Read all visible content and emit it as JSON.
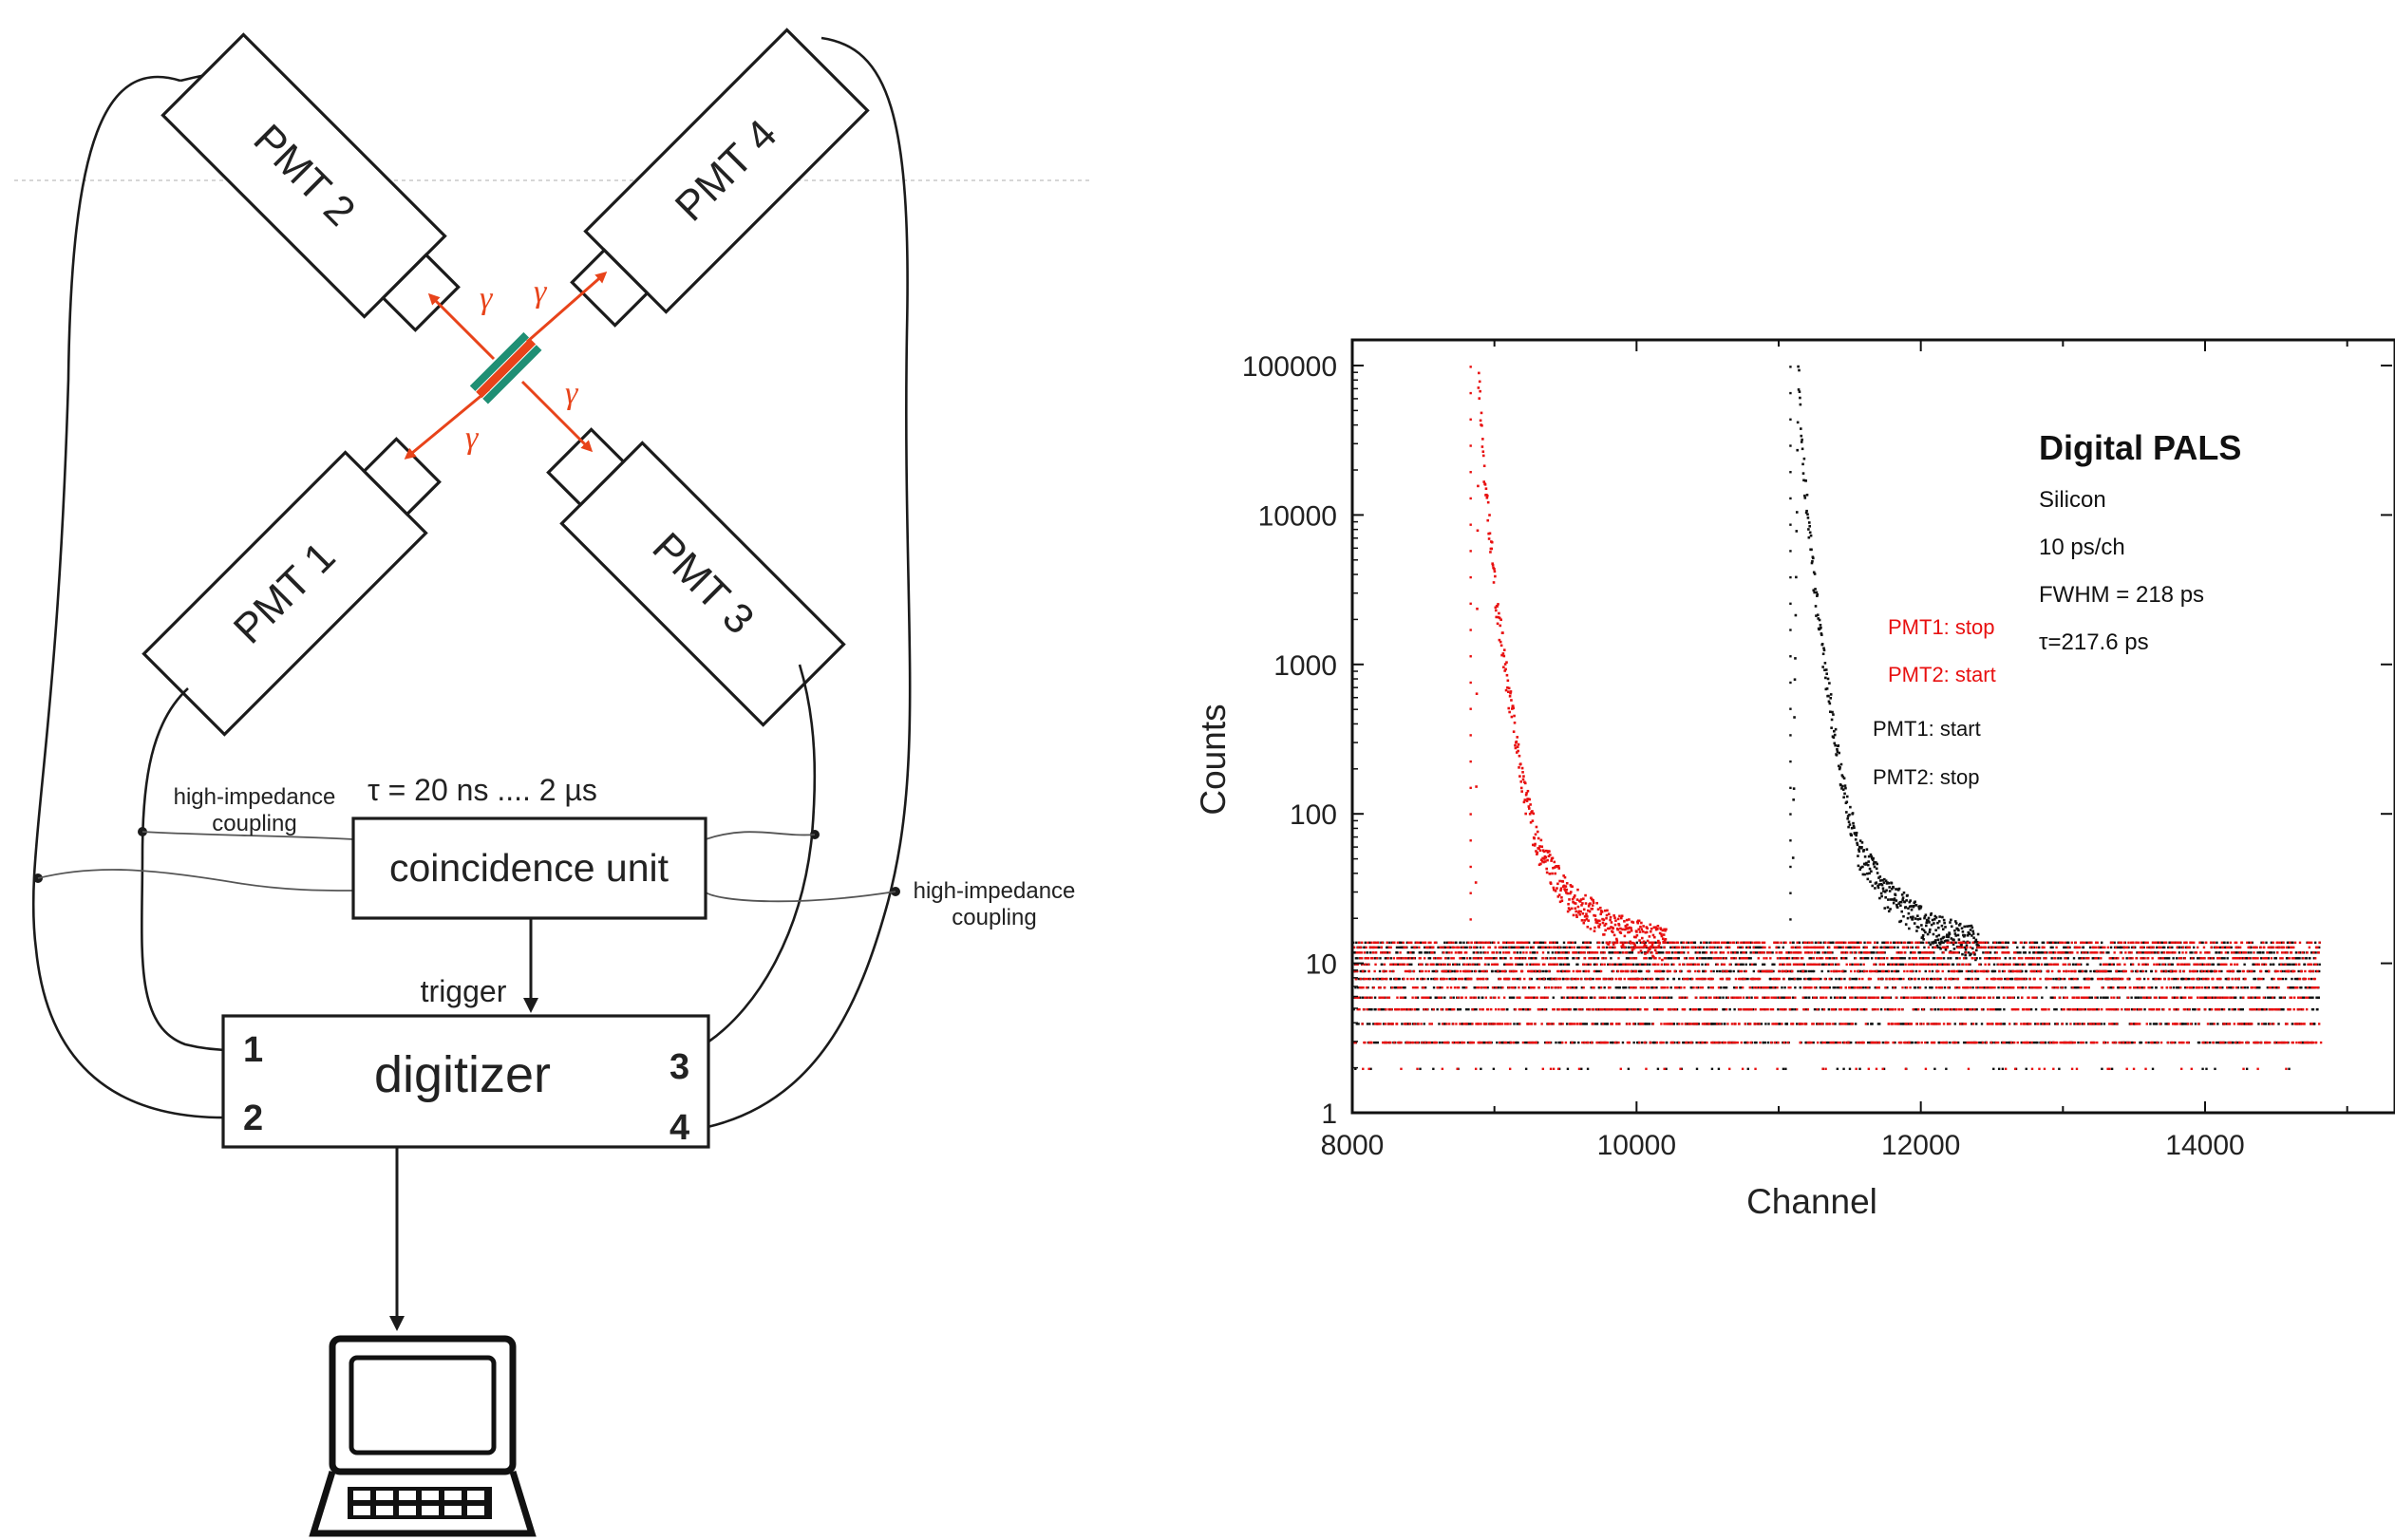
{
  "diagram": {
    "pmts": [
      {
        "id": "pmt1",
        "label": "PMT 1"
      },
      {
        "id": "pmt2",
        "label": "PMT 2"
      },
      {
        "id": "pmt3",
        "label": "PMT 3"
      },
      {
        "id": "pmt4",
        "label": "PMT 4"
      }
    ],
    "gamma_symbol": "γ",
    "coupling_left_line1": "high-impedance",
    "coupling_left_line2": "coupling",
    "coupling_right_line1": "high-impedance",
    "coupling_right_line2": "coupling",
    "tau_range": "τ = 20 ns .... 2 µs",
    "coincidence_unit": "coincidence unit",
    "trigger": "trigger",
    "digitizer": "digitizer",
    "channels": [
      "1",
      "2",
      "3",
      "4"
    ],
    "colors": {
      "gamma": "#e8431a",
      "sample_outer": "#1f8f74",
      "sample_inner": "#e8431a",
      "line": "#1b1b1b"
    }
  },
  "chart_data": {
    "type": "scatter",
    "xlabel": "Channel",
    "ylabel": "Counts",
    "y_scale": "log",
    "xlim": [
      8000,
      14800
    ],
    "ylim": [
      1,
      100000
    ],
    "x_ticks": [
      {
        "value": 8000,
        "label": "8000"
      },
      {
        "value": 10000,
        "label": "10000"
      },
      {
        "value": 12000,
        "label": "12000"
      },
      {
        "value": 14000,
        "label": "14000"
      }
    ],
    "y_ticks": [
      {
        "value": 1,
        "label": "1"
      },
      {
        "value": 10,
        "label": "10"
      },
      {
        "value": 100,
        "label": "100"
      },
      {
        "value": 1000,
        "label": "1000"
      },
      {
        "value": 10000,
        "label": "10000"
      },
      {
        "value": 100000,
        "label": "100000"
      }
    ],
    "series": [
      {
        "color": "#e81010",
        "peak_channel": 8880,
        "peak_counts": 100000,
        "label_lines": [
          "PMT1: stop",
          "PMT2: start"
        ],
        "points": [
          [
            8860,
            30
          ],
          [
            8870,
            2000
          ],
          [
            8880,
            100000
          ],
          [
            8920,
            20000
          ],
          [
            9000,
            3000
          ],
          [
            9100,
            600
          ],
          [
            9200,
            150
          ],
          [
            9300,
            60
          ],
          [
            9500,
            30
          ],
          [
            9800,
            18
          ],
          [
            10200,
            14
          ],
          [
            11000,
            13
          ],
          [
            13000,
            13
          ],
          [
            14800,
            13
          ]
        ]
      },
      {
        "color": "#111111",
        "peak_channel": 11130,
        "peak_counts": 100000,
        "label_lines": [
          "PMT1: start",
          "PMT2: stop"
        ],
        "points": [
          [
            11090,
            30
          ],
          [
            11110,
            2000
          ],
          [
            11130,
            100000
          ],
          [
            11170,
            20000
          ],
          [
            11250,
            3000
          ],
          [
            11350,
            600
          ],
          [
            11450,
            150
          ],
          [
            11550,
            60
          ],
          [
            11750,
            30
          ],
          [
            12050,
            18
          ],
          [
            12400,
            14
          ],
          [
            13000,
            13
          ],
          [
            14800,
            13
          ]
        ]
      }
    ],
    "annotation": {
      "title": "Digital PALS",
      "lines": [
        "Silicon",
        "10 ps/ch",
        "FWHM = 218 ps",
        "τ=217.6 ps"
      ]
    }
  }
}
